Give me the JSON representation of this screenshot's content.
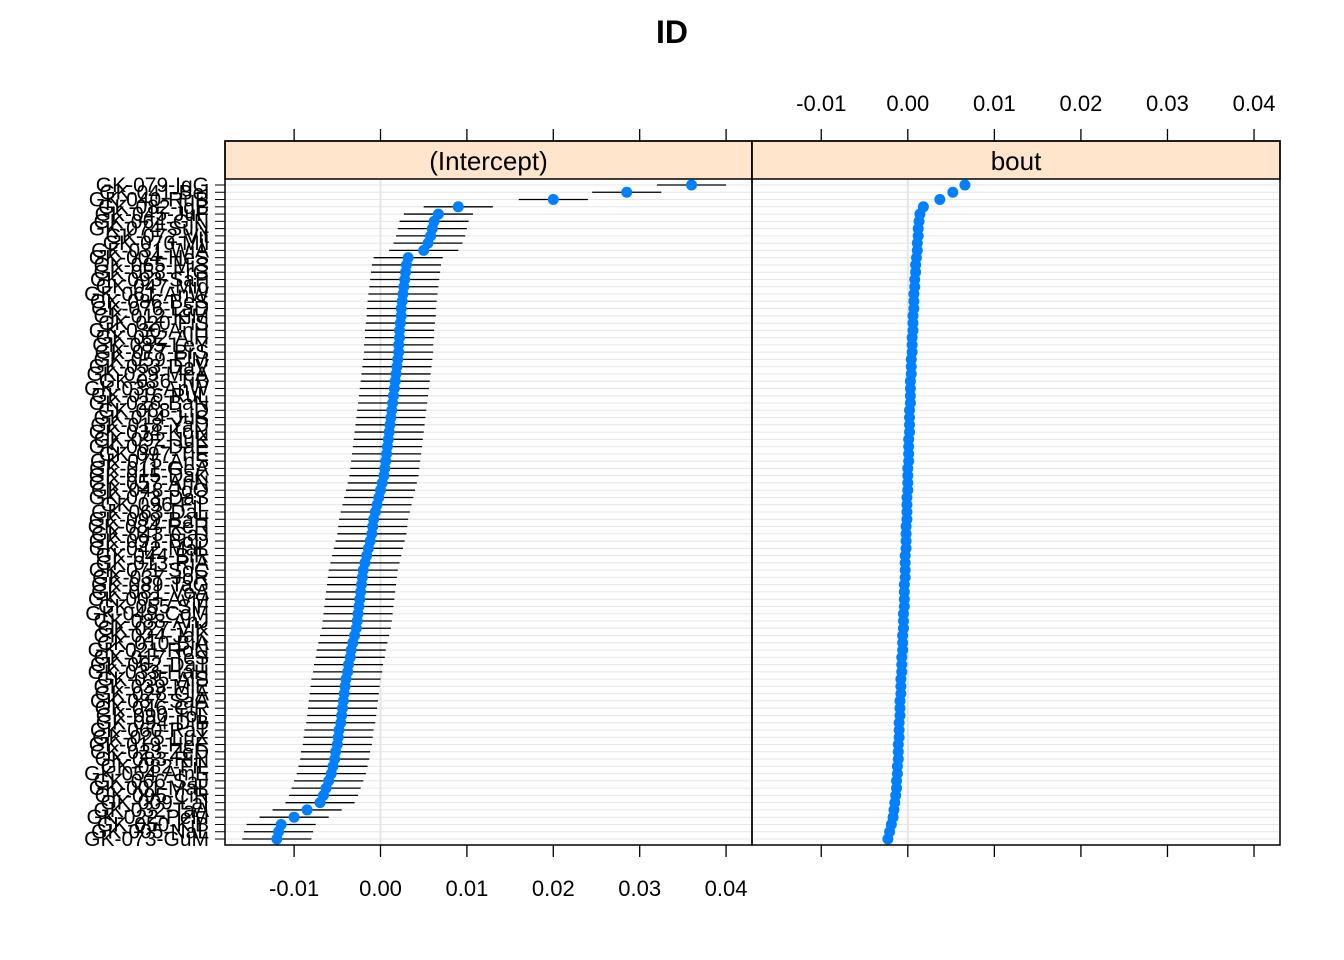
{
  "chart_data": {
    "type": "scatter",
    "title": "ID",
    "xlabel": "",
    "ylabel": "",
    "xlim": [
      -0.018,
      0.043
    ],
    "xticks": [
      -0.01,
      0.0,
      0.01,
      0.02,
      0.03,
      0.04
    ],
    "xtick_labels": [
      "-0.01",
      "0.00",
      "0.01",
      "0.02",
      "0.03",
      "0.04"
    ],
    "grid": true,
    "point_color": "#0080ff",
    "strip_color": "#ffe5cc",
    "categories": [
      "GK-079-IgG",
      "GK-041-Bel",
      "GK-040-RuB",
      "GK-082-IgB",
      "GK-045-JuF",
      "GK-064-GiN",
      "GK-074-SuN",
      "GK-072-Vit",
      "GK-070-Mil",
      "GK-031-WiA",
      "GK-004-HeS",
      "GK-065-MiS",
      "GK-058-FrG",
      "GK-093-SaP",
      "GK-047-Mid",
      "GK-061-AnW",
      "GK-086-BeS",
      "GK-076-LaD",
      "GK-012-KiM",
      "GK-020-FiS",
      "GK-030-AnH",
      "GK-052-AiH",
      "GK-085-LeY",
      "GK-077-BrS",
      "GK-059-ElM",
      "GK-053-DaV",
      "GK-029-MeA",
      "GK-036-TiB",
      "GK-038-AnW",
      "GK-016-RuL",
      "GK-026-BaN",
      "GK-068-LiD",
      "GK-014-JuS",
      "GK-018-YaD",
      "GK-034-KoN",
      "GK-092-JuK",
      "GK-067-DaE",
      "GK-097-TiE",
      "GK-075-AnS",
      "GK-011-GeA",
      "GK-015-DaK",
      "GK-057-AnN",
      "GK-048-JoO",
      "GK-073-DaS",
      "GK-096-FiL",
      "GK-063-DaL",
      "GK-099-BaH",
      "GK-084-ReR",
      "GK-043-GaJ",
      "GK-091-BoD",
      "GK-042-MaL",
      "GK-044-BiR",
      "GK-013-RiA",
      "GK-071-SoC",
      "GK-037-JoR",
      "GK-089-TaG",
      "GK-081-VeA",
      "GK-003-AvM",
      "GK-055-SiF",
      "GK-049-CoM",
      "GK-088-AnJ",
      "GK-027-ViK",
      "GK-024-JaK",
      "GK-010-BiA",
      "GK-021-RoN",
      "GK-017-TeS",
      "GK-062-DaT",
      "GK-033-HaH",
      "GK-035-AlS",
      "GK-039-MiE",
      "GK-028-GiA",
      "GK-087-SaA",
      "GK-046-CiR",
      "GK-090-ToL",
      "GK-094-DiB",
      "GK-060-RaT",
      "GK-025-LuX",
      "GK-019-HeE",
      "GK-023-ZeD",
      "GK-083-RiN",
      "GK-082-FiL",
      "GK-054-AmE",
      "GK-066-SaJ",
      "GK-001-MaL",
      "GK-095-CiR",
      "GK-009-LaI",
      "GK-032-TaA",
      "GK-022-PeM",
      "GK-050-KiB",
      "GK-005-NaL",
      "GK-073-GuM"
    ],
    "panels": [
      {
        "name": "(Intercept)",
        "values": [
          0.036,
          0.0285,
          0.02,
          0.009,
          0.0067,
          0.0062,
          0.006,
          0.0058,
          0.0055,
          0.005,
          0.0032,
          0.003,
          0.0029,
          0.0028,
          0.0027,
          0.0026,
          0.0025,
          0.0024,
          0.0024,
          0.0023,
          0.0022,
          0.0022,
          0.0021,
          0.0021,
          0.002,
          0.0019,
          0.0018,
          0.0017,
          0.0016,
          0.0015,
          0.0014,
          0.0013,
          0.0012,
          0.0011,
          0.001,
          0.0009,
          0.0008,
          0.0007,
          0.0006,
          0.0005,
          0.0004,
          0.0002,
          0.0,
          -0.0002,
          -0.0004,
          -0.0006,
          -0.0008,
          -0.0009,
          -0.001,
          -0.0012,
          -0.0014,
          -0.0016,
          -0.0018,
          -0.002,
          -0.0021,
          -0.0022,
          -0.0023,
          -0.0024,
          -0.0025,
          -0.0026,
          -0.0027,
          -0.0028,
          -0.003,
          -0.0032,
          -0.0034,
          -0.0035,
          -0.0037,
          -0.0038,
          -0.004,
          -0.0041,
          -0.0042,
          -0.0043,
          -0.0044,
          -0.0045,
          -0.0046,
          -0.0048,
          -0.0049,
          -0.005,
          -0.0052,
          -0.0053,
          -0.0055,
          -0.0057,
          -0.006,
          -0.0063,
          -0.0066,
          -0.007,
          -0.0085,
          -0.01,
          -0.0115,
          -0.0118,
          -0.012
        ],
        "lower": [
          0.032,
          0.0245,
          0.016,
          0.005,
          0.0027,
          0.0022,
          0.002,
          0.0018,
          0.0015,
          0.001,
          -0.0008,
          -0.001,
          -0.0011,
          -0.0012,
          -0.0013,
          -0.0014,
          -0.0015,
          -0.0016,
          -0.0016,
          -0.0017,
          -0.0018,
          -0.0018,
          -0.0019,
          -0.0019,
          -0.002,
          -0.0021,
          -0.0022,
          -0.0023,
          -0.0024,
          -0.0025,
          -0.0026,
          -0.0027,
          -0.0028,
          -0.0029,
          -0.003,
          -0.0031,
          -0.0032,
          -0.0033,
          -0.0034,
          -0.0035,
          -0.0036,
          -0.0038,
          -0.004,
          -0.0042,
          -0.0044,
          -0.0046,
          -0.0048,
          -0.0049,
          -0.005,
          -0.0052,
          -0.0054,
          -0.0056,
          -0.0058,
          -0.006,
          -0.0061,
          -0.0062,
          -0.0063,
          -0.0064,
          -0.0065,
          -0.0066,
          -0.0067,
          -0.0068,
          -0.007,
          -0.0072,
          -0.0074,
          -0.0075,
          -0.0077,
          -0.0078,
          -0.008,
          -0.0081,
          -0.0082,
          -0.0083,
          -0.0084,
          -0.0085,
          -0.0086,
          -0.0088,
          -0.0089,
          -0.009,
          -0.0092,
          -0.0093,
          -0.0095,
          -0.0097,
          -0.01,
          -0.0103,
          -0.0106,
          -0.011,
          -0.0125,
          -0.014,
          -0.0155,
          -0.0158,
          -0.016
        ],
        "upper": [
          0.04,
          0.0325,
          0.024,
          0.013,
          0.0107,
          0.0102,
          0.01,
          0.0098,
          0.0095,
          0.009,
          0.0072,
          0.007,
          0.0069,
          0.0068,
          0.0067,
          0.0066,
          0.0065,
          0.0064,
          0.0064,
          0.0063,
          0.0062,
          0.0062,
          0.0061,
          0.0061,
          0.006,
          0.0059,
          0.0058,
          0.0057,
          0.0056,
          0.0055,
          0.0054,
          0.0053,
          0.0052,
          0.0051,
          0.005,
          0.0049,
          0.0048,
          0.0047,
          0.0046,
          0.0045,
          0.0044,
          0.0042,
          0.004,
          0.0038,
          0.0036,
          0.0034,
          0.0032,
          0.0031,
          0.003,
          0.0028,
          0.0026,
          0.0024,
          0.0022,
          0.002,
          0.0019,
          0.0018,
          0.0017,
          0.0016,
          0.0015,
          0.0014,
          0.0013,
          0.0012,
          0.001,
          0.0008,
          0.0006,
          0.0005,
          0.0003,
          0.0002,
          0.0,
          -0.0001,
          -0.0002,
          -0.0003,
          -0.0004,
          -0.0005,
          -0.0006,
          -0.0008,
          -0.0009,
          -0.001,
          -0.0012,
          -0.0013,
          -0.0015,
          -0.0017,
          -0.002,
          -0.0023,
          -0.0026,
          -0.003,
          -0.0045,
          -0.006,
          -0.0075,
          -0.0078,
          -0.008
        ]
      },
      {
        "name": "bout",
        "values": [
          0.0066,
          0.0052,
          0.0037,
          0.0018,
          0.0014,
          0.0013,
          0.0012,
          0.0012,
          0.0011,
          0.0011,
          0.001,
          0.0009,
          0.0009,
          0.0008,
          0.0008,
          0.0007,
          0.0007,
          0.0007,
          0.0006,
          0.0006,
          0.0006,
          0.0005,
          0.0005,
          0.0005,
          0.0004,
          0.0004,
          0.0004,
          0.0003,
          0.0003,
          0.0003,
          0.0003,
          0.0002,
          0.0002,
          0.0002,
          0.0002,
          0.0001,
          0.0001,
          0.0001,
          0.0001,
          0.0,
          0.0,
          0.0,
          0.0,
          -0.0001,
          -0.0001,
          -0.0001,
          -0.0001,
          -0.0002,
          -0.0002,
          -0.0002,
          -0.0002,
          -0.0003,
          -0.0003,
          -0.0003,
          -0.0003,
          -0.0004,
          -0.0004,
          -0.0004,
          -0.0004,
          -0.0005,
          -0.0005,
          -0.0005,
          -0.0006,
          -0.0006,
          -0.0006,
          -0.0007,
          -0.0007,
          -0.0007,
          -0.0008,
          -0.0008,
          -0.0008,
          -0.0009,
          -0.0009,
          -0.0009,
          -0.001,
          -0.001,
          -0.001,
          -0.0011,
          -0.0011,
          -0.0011,
          -0.0012,
          -0.0012,
          -0.0013,
          -0.0013,
          -0.0014,
          -0.0015,
          -0.0016,
          -0.0017,
          -0.0019,
          -0.0021,
          -0.0023
        ],
        "lower": null,
        "upper": null
      }
    ]
  }
}
